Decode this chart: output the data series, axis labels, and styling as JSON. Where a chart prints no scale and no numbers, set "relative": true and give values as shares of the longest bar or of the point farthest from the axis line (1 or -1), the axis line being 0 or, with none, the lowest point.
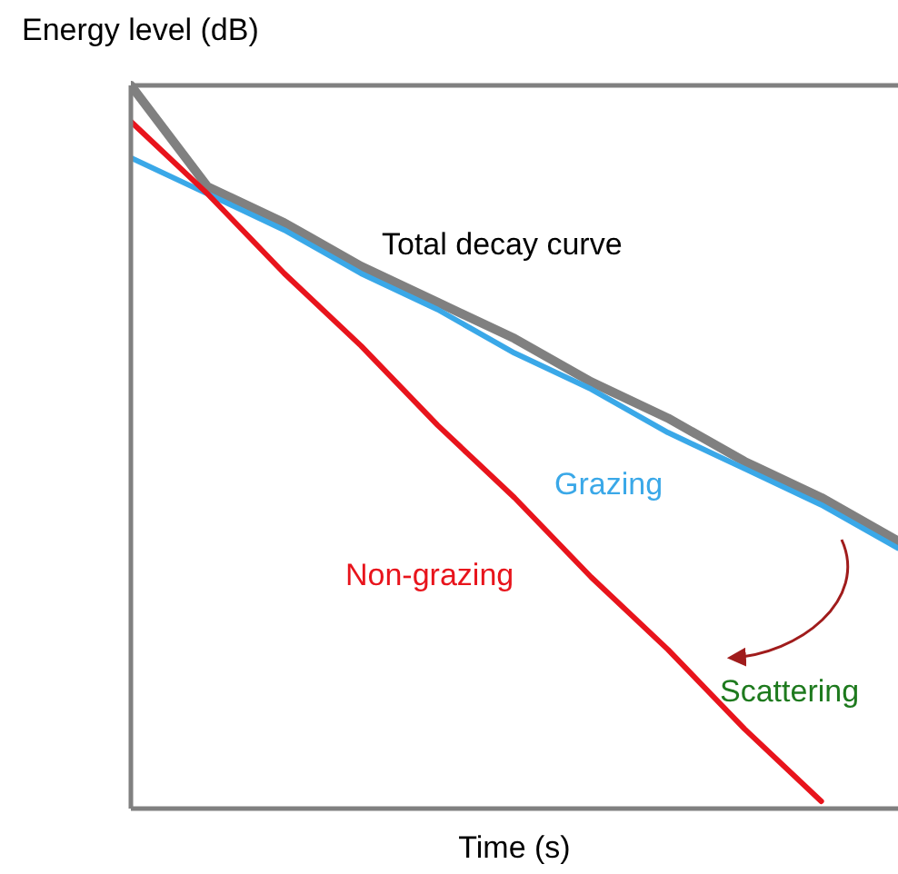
{
  "chart_data": {
    "type": "line",
    "relative": true,
    "xlabel": "Time (s)",
    "ylabel": "Energy level (dB)",
    "categories": [
      null,
      null,
      null,
      null,
      null,
      null,
      null,
      null,
      null,
      null,
      null
    ],
    "series": [
      {
        "name": "Total decay curve",
        "color": "#808080",
        "values": [
          1,
          0.86,
          0.81,
          0.75,
          0.7,
          0.65,
          0.59,
          0.54,
          0.48,
          0.43,
          0.37
        ]
      },
      {
        "name": "Grazing",
        "color": "#3aa8e8",
        "values": [
          0.9,
          0.85,
          0.8,
          0.74,
          0.69,
          0.63,
          0.58,
          0.52,
          0.47,
          0.42,
          0.36
        ]
      },
      {
        "name": "Non-grazing",
        "color": "#e8141c",
        "values": [
          0.95,
          0.85,
          0.74,
          0.64,
          0.53,
          0.43,
          0.32,
          0.22,
          0.11,
          0.01,
          null
        ]
      }
    ],
    "annotations": [
      "Scattering"
    ],
    "marker": "none",
    "line_style": "solid"
  }
}
